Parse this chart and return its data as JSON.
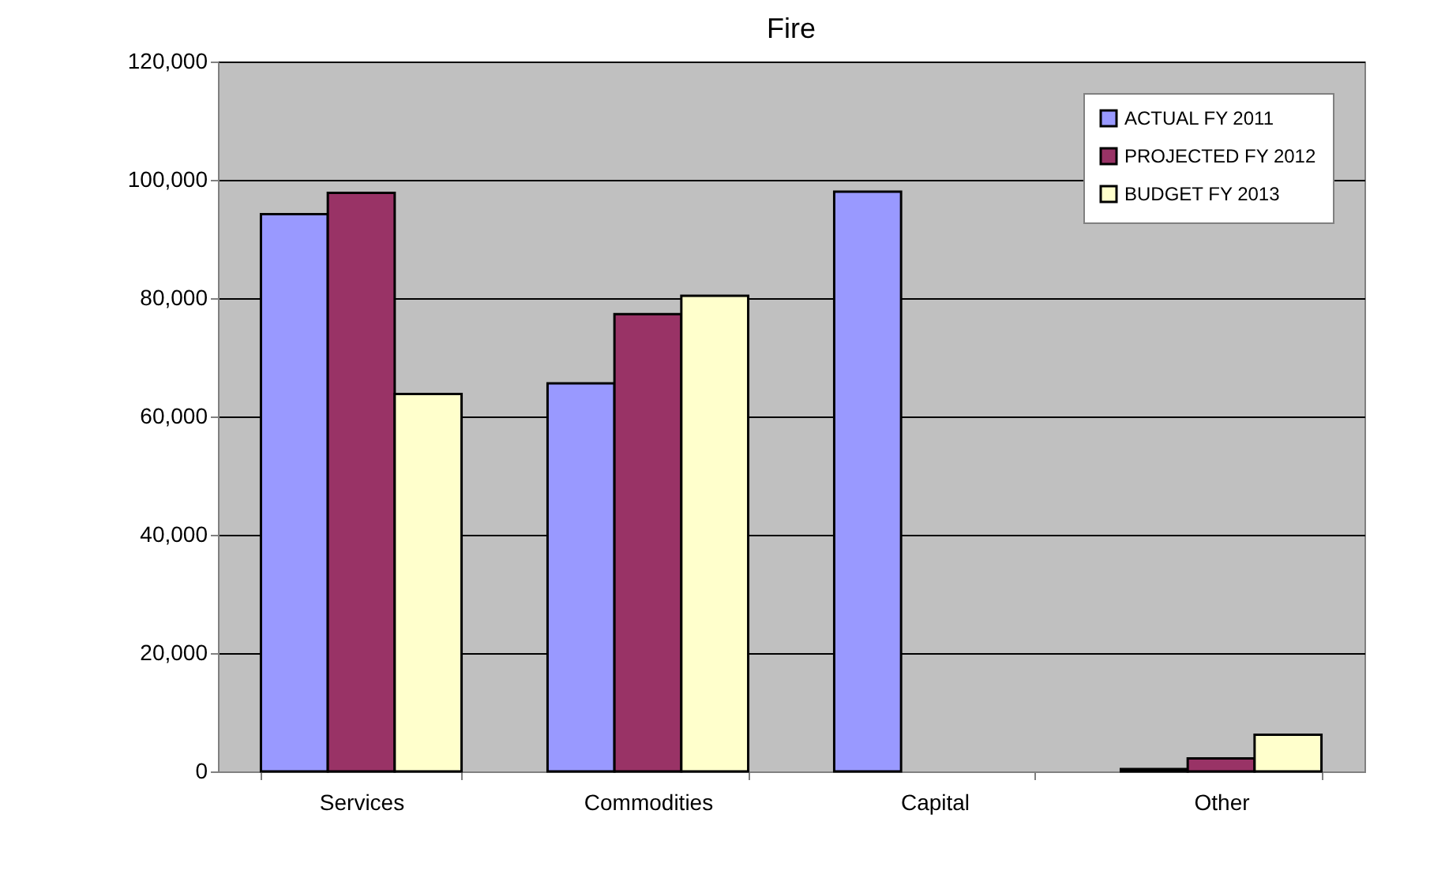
{
  "chart_data": {
    "type": "bar",
    "title": "Fire",
    "categories": [
      "Services",
      "Commodities",
      "Capital",
      "Other"
    ],
    "series": [
      {
        "name": "ACTUAL FY 2011",
        "color": "#9999ff",
        "values": [
          94200,
          65600,
          98000,
          400
        ]
      },
      {
        "name": "PROJECTED FY 2012",
        "color": "#993366",
        "values": [
          97800,
          77300,
          null,
          2200
        ]
      },
      {
        "name": "BUDGET FY 2013",
        "color": "#ffffcc",
        "values": [
          63800,
          80400,
          null,
          6200
        ]
      }
    ],
    "ylim": [
      0,
      120000
    ],
    "yticks": [
      0,
      {
        "value": 20000,
        "label": "20,000"
      },
      {
        "value": 40000,
        "label": "40,000"
      },
      {
        "value": 60000,
        "label": "60,000"
      },
      {
        "value": 80000,
        "label": "80,000"
      },
      {
        "value": 100000,
        "label": "100,000"
      },
      {
        "value": 120000,
        "label": "120,000"
      }
    ],
    "grid": "y",
    "legend": "top right"
  }
}
